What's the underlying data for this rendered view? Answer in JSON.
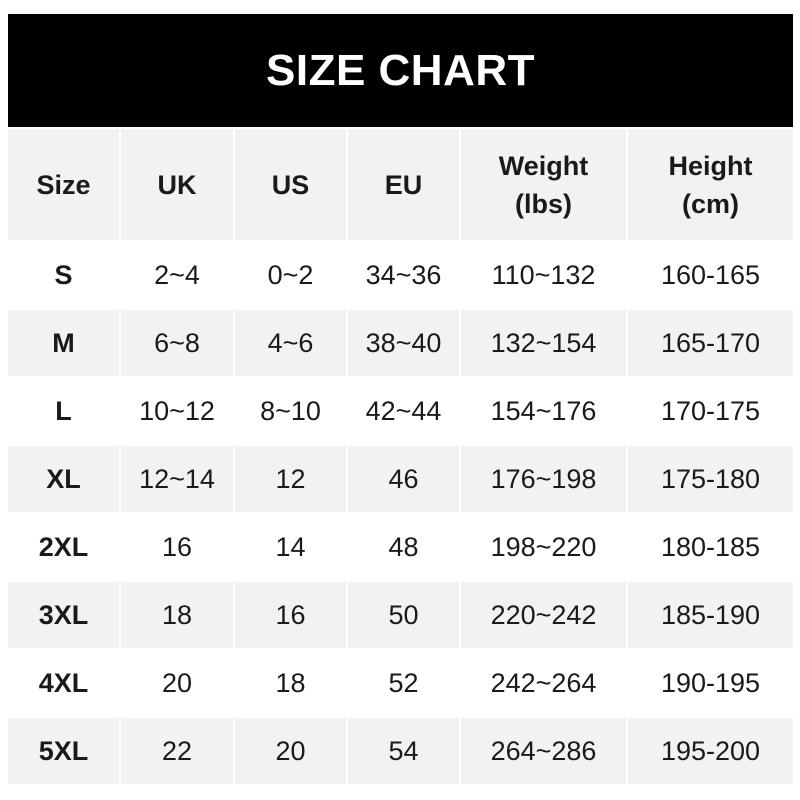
{
  "title": "SIZE CHART",
  "headers": [
    "Size",
    "UK",
    "US",
    "EU",
    "Weight\n(lbs)",
    "Height\n(cm)"
  ],
  "rows": [
    [
      "S",
      "2~4",
      "0~2",
      "34~36",
      "110~132",
      "160-165"
    ],
    [
      "M",
      "6~8",
      "4~6",
      "38~40",
      "132~154",
      "165-170"
    ],
    [
      "L",
      "10~12",
      "8~10",
      "42~44",
      "154~176",
      "170-175"
    ],
    [
      "XL",
      "12~14",
      "12",
      "46",
      "176~198",
      "175-180"
    ],
    [
      "2XL",
      "16",
      "14",
      "48",
      "198~220",
      "180-185"
    ],
    [
      "3XL",
      "18",
      "16",
      "50",
      "220~242",
      "185-190"
    ],
    [
      "4XL",
      "20",
      "18",
      "52",
      "242~264",
      "190-195"
    ],
    [
      "5XL",
      "22",
      "20",
      "54",
      "264~286",
      "195-200"
    ]
  ],
  "colors": {
    "title_bg": "#000000",
    "header_bg": "#f2f2f2",
    "stripe_bg": "#f2f2f2",
    "text": "#1a1a1a"
  }
}
